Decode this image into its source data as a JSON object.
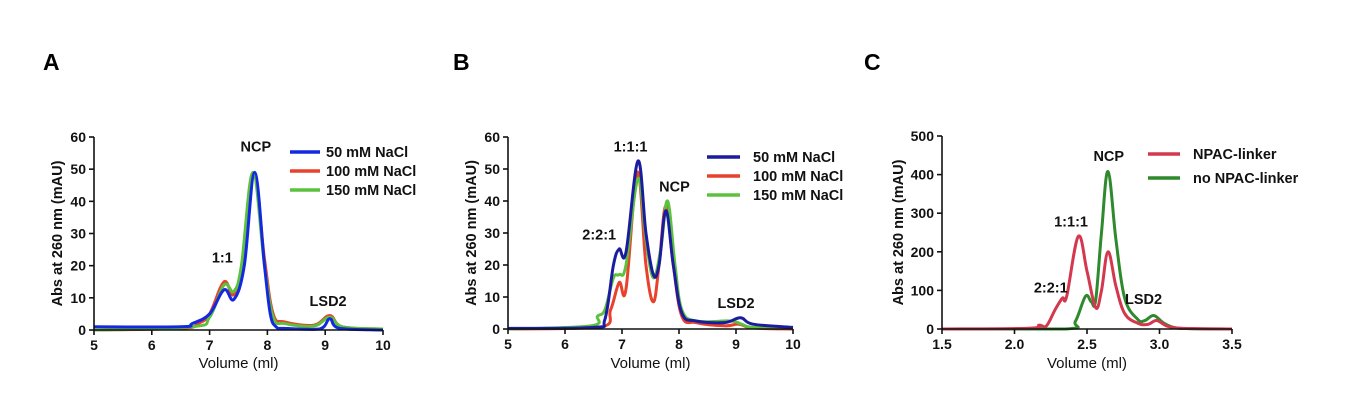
{
  "chart_data": [
    {
      "panel": "A",
      "type": "line",
      "title": "",
      "xlabel": "Volume (ml)",
      "ylabel": "Abs at 260 nm (mAU)",
      "xlim": [
        5,
        10
      ],
      "ylim": [
        0,
        60
      ],
      "xticks": [
        5,
        6,
        7,
        8,
        9,
        10
      ],
      "xtick_labels": [
        "5",
        "6",
        "7",
        "8",
        "9",
        "10"
      ],
      "yticks": [
        0,
        10,
        20,
        30,
        40,
        50,
        60
      ],
      "ytick_labels": [
        "0",
        "10",
        "20",
        "30",
        "40",
        "50",
        "60"
      ],
      "grid": false,
      "legend_placement": "top-right",
      "annotations": [
        {
          "text": "1:1",
          "x": 7.22,
          "y": 21
        },
        {
          "text": "NCP",
          "x": 7.8,
          "y": 55.5
        },
        {
          "text": "LSD2",
          "x": 9.05,
          "y": 7.5
        }
      ],
      "series": [
        {
          "name": "100 mM NaCl",
          "color": "#e8412c",
          "x": [
            5,
            6.5,
            6.8,
            7.0,
            7.25,
            7.42,
            7.6,
            7.77,
            7.95,
            8.1,
            8.3,
            8.8,
            9.08,
            9.3,
            10
          ],
          "y": [
            0,
            0.5,
            2,
            5,
            15,
            11,
            22,
            48,
            22,
            5,
            2.5,
            1.5,
            4.5,
            1,
            0.3
          ]
        },
        {
          "name": "150 mM NaCl",
          "color": "#5cc23e",
          "x": [
            5,
            6.7,
            7.0,
            7.25,
            7.42,
            7.55,
            7.75,
            7.95,
            8.1,
            8.3,
            8.8,
            9.08,
            9.3,
            10
          ],
          "y": [
            0,
            1,
            4,
            14,
            12,
            20,
            49,
            20,
            4,
            2,
            1.2,
            4,
            1,
            0.3
          ]
        },
        {
          "name": "50 mM NaCl",
          "color": "#1428e0",
          "x": [
            5,
            6.5,
            6.7,
            7.0,
            7.25,
            7.42,
            7.6,
            7.78,
            7.95,
            8.05,
            8.15,
            8.3,
            8.9,
            9.08,
            9.25,
            10
          ],
          "y": [
            1,
            1,
            2,
            5,
            12.5,
            9.5,
            20,
            49,
            20,
            5,
            1,
            0.5,
            0.3,
            3.5,
            0.5,
            0
          ]
        }
      ],
      "legend": [
        "50 mM NaCl",
        "100 mM NaCl",
        "150 mM NaCl"
      ]
    },
    {
      "panel": "B",
      "type": "line",
      "title": "",
      "xlabel": "Volume (ml)",
      "ylabel": "Abs at 260 nm (mAU)",
      "xlim": [
        5,
        10
      ],
      "ylim": [
        0,
        60
      ],
      "xticks": [
        5,
        6,
        7,
        8,
        9,
        10
      ],
      "xtick_labels": [
        "5",
        "6",
        "7",
        "8",
        "9",
        "10"
      ],
      "yticks": [
        0,
        10,
        20,
        30,
        40,
        50,
        60
      ],
      "ytick_labels": [
        "0",
        "10",
        "20",
        "30",
        "40",
        "50",
        "60"
      ],
      "grid": false,
      "legend_placement": "top-right",
      "annotations": [
        {
          "text": "2:2:1",
          "x": 6.6,
          "y": 28
        },
        {
          "text": "1:1:1",
          "x": 7.15,
          "y": 55.5
        },
        {
          "text": "NCP",
          "x": 7.92,
          "y": 43
        },
        {
          "text": "LSD2",
          "x": 9.0,
          "y": 6.5
        }
      ],
      "series": [
        {
          "name": "100 mM NaCl",
          "color": "#e8412c",
          "x": [
            5,
            6.6,
            6.8,
            6.95,
            7.07,
            7.27,
            7.42,
            7.55,
            7.65,
            7.77,
            7.9,
            8.05,
            8.3,
            8.8,
            9.05,
            9.3,
            10
          ],
          "y": [
            0,
            0.5,
            6,
            14.5,
            12.5,
            49,
            20,
            8.5,
            20,
            38.5,
            20,
            4,
            2,
            1,
            1.5,
            0.3,
            0
          ]
        },
        {
          "name": "150 mM NaCl",
          "color": "#5cc23e",
          "x": [
            5,
            6.45,
            6.57,
            6.7,
            6.85,
            6.95,
            7.07,
            7.28,
            7.42,
            7.55,
            7.68,
            7.8,
            7.93,
            8.05,
            8.3,
            8.9,
            9.1,
            9.3,
            10
          ],
          "y": [
            0,
            1,
            4,
            6,
            16,
            17,
            20,
            47,
            28,
            16,
            25,
            40,
            20,
            6,
            2.5,
            2.5,
            1.5,
            0.5,
            0.3
          ]
        },
        {
          "name": "50 mM NaCl",
          "color": "#1c1ca0",
          "x": [
            5,
            6.5,
            6.7,
            6.85,
            6.95,
            7.07,
            7.28,
            7.42,
            7.55,
            7.65,
            7.77,
            7.9,
            8.05,
            8.3,
            8.8,
            9.08,
            9.3,
            10
          ],
          "y": [
            0.2,
            0.5,
            3,
            20,
            25,
            24,
            52.5,
            30,
            17,
            20,
            37,
            20,
            5,
            2.5,
            2,
            3.5,
            1.5,
            0.5
          ]
        }
      ],
      "legend": [
        "50 mM NaCl",
        "100 mM NaCl",
        "150 mM NaCl"
      ]
    },
    {
      "panel": "C",
      "type": "line",
      "title": "",
      "xlabel": "Volume (ml)",
      "ylabel": "Abs at 260 nm (mAU)",
      "xlim": [
        1.5,
        3.5
      ],
      "ylim": [
        0,
        500
      ],
      "xticks": [
        1.5,
        2.0,
        2.5,
        3.0,
        3.5
      ],
      "xtick_labels": [
        "1.5",
        "2.0",
        "2.5",
        "3.0",
        "3.5"
      ],
      "yticks": [
        0,
        100,
        200,
        300,
        400,
        500
      ],
      "ytick_labels": [
        "0",
        "100",
        "200",
        "300",
        "400",
        "500"
      ],
      "grid": false,
      "legend_placement": "top-right",
      "annotations": [
        {
          "text": "2:2:1",
          "x": 2.25,
          "y": 95
        },
        {
          "text": "1:1:1",
          "x": 2.39,
          "y": 265
        },
        {
          "text": "NCP",
          "x": 2.65,
          "y": 435
        },
        {
          "text": "LSD2",
          "x": 2.89,
          "y": 65
        }
      ],
      "series": [
        {
          "name": "no NPAC-linker",
          "color": "#2e8a2c",
          "x": [
            1.5,
            2.35,
            2.42,
            2.49,
            2.53,
            2.56,
            2.6,
            2.645,
            2.7,
            2.76,
            2.85,
            2.9,
            2.96,
            3.03,
            3.1,
            3.2,
            3.5
          ],
          "y": [
            0,
            0,
            20,
            85,
            70,
            75,
            250,
            408,
            230,
            80,
            25,
            22,
            35,
            15,
            4,
            1,
            0
          ]
        },
        {
          "name": "NPAC-linker",
          "color": "#d4384f",
          "x": [
            1.5,
            2.1,
            2.17,
            2.22,
            2.28,
            2.33,
            2.36,
            2.44,
            2.5,
            2.56,
            2.6,
            2.645,
            2.7,
            2.76,
            2.85,
            2.92,
            2.98,
            3.05,
            3.15,
            3.5
          ],
          "y": [
            0,
            2,
            10,
            8,
            50,
            80,
            85,
            240,
            150,
            55,
            100,
            200,
            110,
            40,
            15,
            12,
            22,
            8,
            2,
            0
          ]
        }
      ],
      "legend": [
        "NPAC-linker",
        "no NPAC-linker"
      ]
    }
  ]
}
